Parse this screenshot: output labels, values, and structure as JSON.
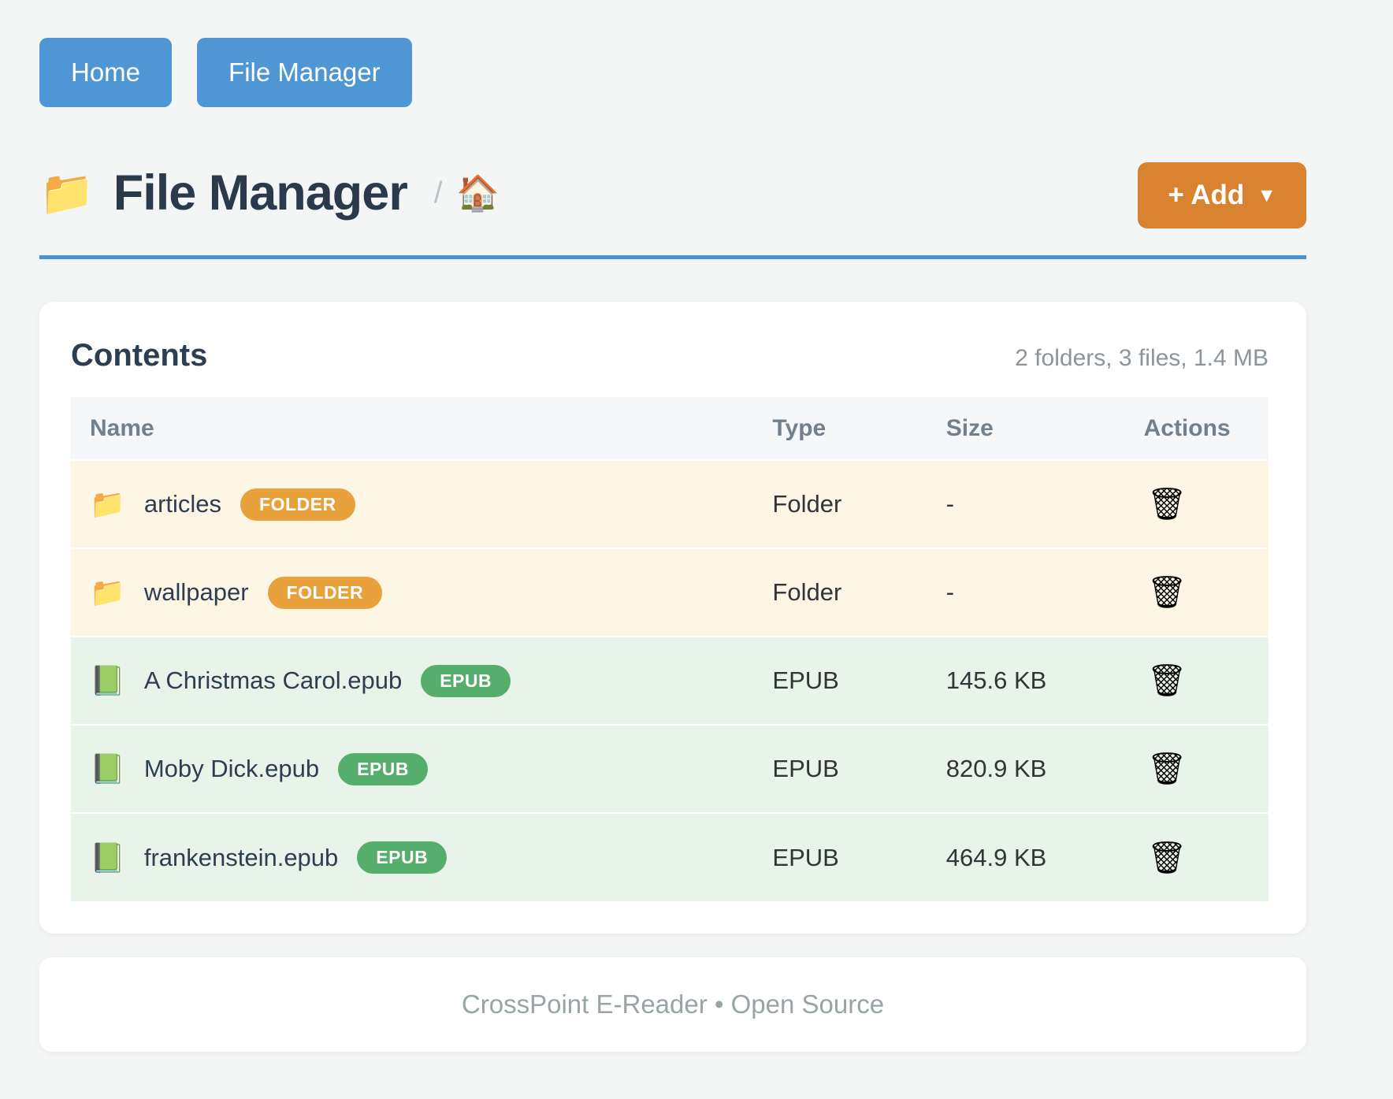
{
  "nav": {
    "buttons": [
      {
        "label": "Home"
      },
      {
        "label": "File Manager"
      }
    ]
  },
  "header": {
    "title_icon": "📁",
    "title": "File Manager",
    "breadcrumb_separator": "/",
    "breadcrumb_home_icon": "🏠",
    "add_button": {
      "label": "+ Add",
      "caret": "▼"
    }
  },
  "card": {
    "title": "Contents",
    "summary": "2 folders, 3 files, 1.4 MB",
    "table": {
      "columns": [
        "Name",
        "Type",
        "Size",
        "Actions"
      ],
      "rows": [
        {
          "icon": "📁",
          "name": "articles",
          "badge": "FOLDER",
          "type": "Folder",
          "size": "-",
          "action_icon": "🗑"
        },
        {
          "icon": "📁",
          "name": "wallpaper",
          "badge": "FOLDER",
          "type": "Folder",
          "size": "-",
          "action_icon": "🗑"
        },
        {
          "icon": "📗",
          "name": "A Christmas Carol.epub",
          "badge": "EPUB",
          "type": "EPUB",
          "size": "145.6 KB",
          "action_icon": "🗑"
        },
        {
          "icon": "📗",
          "name": "Moby Dick.epub",
          "badge": "EPUB",
          "type": "EPUB",
          "size": "820.9 KB",
          "action_icon": "🗑"
        },
        {
          "icon": "📗",
          "name": "frankenstein.epub",
          "badge": "EPUB",
          "type": "EPUB",
          "size": "464.9 KB",
          "action_icon": "🗑"
        }
      ]
    }
  },
  "footer": {
    "text": "CrossPoint E-Reader • Open Source"
  },
  "colors": {
    "page_background": "#f4f5f5",
    "nav_button_blue": "#4f96d4",
    "divider_blue": "#4793d2",
    "add_button_orange": "#d9822f",
    "folder_badge_orange": "#e9a23b",
    "epub_badge_green": "#56ae6c",
    "folder_row_background": "#fdf6e5",
    "epub_row_background": "#e8f3ea",
    "table_header_background": "#f5f7f9",
    "heading_text": "#2d3e50",
    "muted_text": "#98a4a5"
  }
}
